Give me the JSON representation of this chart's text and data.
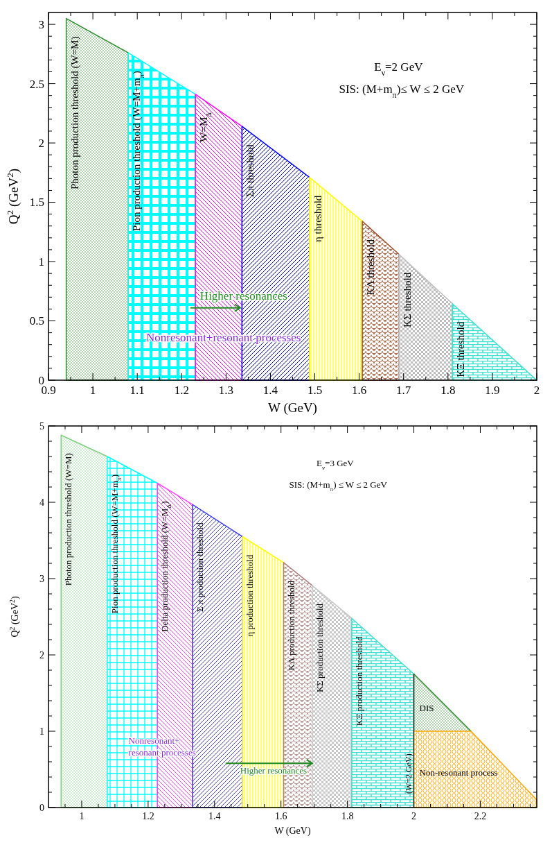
{
  "chart_data": [
    {
      "type": "area",
      "xlabel": "W (GeV)",
      "ylabel": "Q$^{2}$ (GeV$^{2}$)",
      "xlim": [
        0.9,
        2
      ],
      "ylim": [
        0,
        3.1
      ],
      "xticks": [
        0.9,
        {
          "value": 0.95,
          "label": null
        },
        1,
        {
          "value": 1.05,
          "label": null
        },
        1.1,
        {
          "value": 1.15,
          "label": null
        },
        1.2,
        {
          "value": 1.25,
          "label": null
        },
        1.3,
        {
          "value": 1.35,
          "label": null
        },
        1.4,
        {
          "value": 1.45,
          "label": null
        },
        1.5,
        {
          "value": 1.55,
          "label": null
        },
        1.6,
        {
          "value": 1.65,
          "label": null
        },
        1.7,
        {
          "value": 1.75,
          "label": null
        },
        1.8,
        {
          "value": 1.85,
          "label": null
        },
        1.9,
        {
          "value": 1.95,
          "label": null
        },
        2
      ],
      "yticks": [
        0,
        {
          "value": 0.1,
          "label": null
        },
        {
          "value": 0.2,
          "label": null
        },
        {
          "value": 0.3,
          "label": null
        },
        {
          "value": 0.4,
          "label": null
        },
        0.5,
        {
          "value": 0.6,
          "label": null
        },
        {
          "value": 0.7,
          "label": null
        },
        {
          "value": 0.8,
          "label": null
        },
        {
          "value": 0.9,
          "label": null
        },
        1,
        {
          "value": 1.1,
          "label": null
        },
        {
          "value": 1.2,
          "label": null
        },
        {
          "value": 1.3,
          "label": null
        },
        {
          "value": 1.4,
          "label": null
        },
        1.5,
        {
          "value": 1.6,
          "label": null
        },
        {
          "value": 1.7,
          "label": null
        },
        {
          "value": 1.8,
          "label": null
        },
        {
          "value": 1.9,
          "label": null
        },
        2,
        {
          "value": 2.1,
          "label": null
        },
        {
          "value": 2.2,
          "label": null
        },
        {
          "value": 2.3,
          "label": null
        },
        {
          "value": 2.4,
          "label": null
        },
        2.5,
        {
          "value": 2.6,
          "label": null
        },
        {
          "value": 2.7,
          "label": null
        },
        {
          "value": 2.8,
          "label": null
        },
        {
          "value": 2.9,
          "label": null
        },
        3
      ],
      "series": [
        {
          "name": "Photon production threshold (W=M)",
          "color": "#2e8b2e",
          "x": [
            0.94,
            1.08
          ],
          "values": [
            3.05,
            2.76
          ]
        },
        {
          "name": "Pion production threshold (W=M+m$_{π}$)",
          "color": "#00ffff",
          "x": [
            1.08,
            1.231
          ],
          "values": [
            2.76,
            2.41
          ]
        },
        {
          "name": "W=M$_{Δ}$",
          "color": "#ff00ff",
          "x": [
            1.231,
            1.336
          ],
          "values": [
            2.41,
            2.14
          ]
        },
        {
          "name": "Σπ threshold",
          "color": "#0000ff",
          "x": [
            1.336,
            1.488
          ],
          "values": [
            2.14,
            1.71
          ]
        },
        {
          "name": "η threshold",
          "color": "#ffff00",
          "x": [
            1.488,
            1.607
          ],
          "values": [
            1.71,
            1.34
          ]
        },
        {
          "name": "KΛ threshold",
          "color": "#a0522d",
          "x": [
            1.607,
            1.69
          ],
          "values": [
            1.34,
            1.06
          ]
        },
        {
          "name": "KΣ threshold",
          "color": "#bebebe",
          "x": [
            1.69,
            1.81
          ],
          "values": [
            1.06,
            0.645
          ]
        },
        {
          "name": "KΞ threshold",
          "color": "#40e0d0",
          "x": [
            1.81,
            2.0
          ],
          "values": [
            0.645,
            0
          ]
        }
      ],
      "annotations": [
        "E$_{ν}$=2 GeV",
        "SIS: (M+m$_{π}$)≤ W ≤ 2 GeV",
        {
          "text": "Higher resonances",
          "x": 1.332,
          "y": 0.61
        },
        "Nonresonant+resonant processes"
      ]
    },
    {
      "type": "area",
      "xlabel": "W (GeV)",
      "ylabel": "Q$^{2}$ (GeV$^{2}$)",
      "xlim": [
        0.9,
        2.37
      ],
      "ylim": [
        0,
        5
      ],
      "xticks": [
        {
          "value": 0.95,
          "label": null
        },
        1,
        {
          "value": 1.05,
          "label": null
        },
        {
          "value": 1.1,
          "label": null
        },
        {
          "value": 1.15,
          "label": null
        },
        1.2,
        {
          "value": 1.25,
          "label": null
        },
        {
          "value": 1.3,
          "label": null
        },
        {
          "value": 1.35,
          "label": null
        },
        1.4,
        {
          "value": 1.45,
          "label": null
        },
        {
          "value": 1.5,
          "label": null
        },
        {
          "value": 1.55,
          "label": null
        },
        1.6,
        {
          "value": 1.65,
          "label": null
        },
        {
          "value": 1.7,
          "label": null
        },
        {
          "value": 1.75,
          "label": null
        },
        1.8,
        {
          "value": 1.85,
          "label": null
        },
        {
          "value": 1.9,
          "label": null
        },
        {
          "value": 1.95,
          "label": null
        },
        2,
        {
          "value": 2.05,
          "label": null
        },
        {
          "value": 2.1,
          "label": null
        },
        {
          "value": 2.15,
          "label": null
        },
        2.2,
        {
          "value": 2.25,
          "label": null
        },
        {
          "value": 2.3,
          "label": null
        },
        {
          "value": 2.35,
          "label": null
        }
      ],
      "yticks": [
        0,
        {
          "value": 0.2,
          "label": null
        },
        {
          "value": 0.4,
          "label": null
        },
        {
          "value": 0.6,
          "label": null
        },
        {
          "value": 0.8,
          "label": null
        },
        1,
        {
          "value": 1.2,
          "label": null
        },
        {
          "value": 1.4,
          "label": null
        },
        {
          "value": 1.6,
          "label": null
        },
        {
          "value": 1.8,
          "label": null
        },
        2,
        {
          "value": 2.2,
          "label": null
        },
        {
          "value": 2.4,
          "label": null
        },
        {
          "value": 2.6,
          "label": null
        },
        {
          "value": 2.8,
          "label": null
        },
        3,
        {
          "value": 3.2,
          "label": null
        },
        {
          "value": 3.4,
          "label": null
        },
        {
          "value": 3.6,
          "label": null
        },
        {
          "value": 3.8,
          "label": null
        },
        4,
        {
          "value": 4.2,
          "label": null
        },
        {
          "value": 4.4,
          "label": null
        },
        {
          "value": 4.6,
          "label": null
        },
        {
          "value": 4.8,
          "label": null
        },
        5
      ],
      "series": [
        {
          "name": "Photon production threshold  (W=M)",
          "color": "#7fcf7f",
          "x": [
            0.938,
            1.077
          ],
          "values": [
            4.88,
            4.6
          ]
        },
        {
          "name": "Pion production threshold (W=M+m$_{π}$)",
          "color": "#00ffff",
          "x": [
            1.077,
            1.228
          ],
          "values": [
            4.6,
            4.25
          ]
        },
        {
          "name": "Delta production threshold (W=M$_{Δ}$)",
          "color": "#ff44ff",
          "x": [
            1.228,
            1.334
          ],
          "values": [
            4.25,
            3.97
          ]
        },
        {
          "name": "Σ π  production threshold",
          "color": "#4444ee",
          "x": [
            1.334,
            1.484
          ],
          "values": [
            3.97,
            3.55
          ]
        },
        {
          "name": "η  production threshold",
          "color": "#ffff00",
          "x": [
            1.484,
            1.608
          ],
          "values": [
            3.55,
            3.21
          ]
        },
        {
          "name": "KΛ  production threshold",
          "color": "#b08080",
          "x": [
            1.608,
            1.694
          ],
          "values": [
            3.21,
            2.91
          ]
        },
        {
          "name": "KΣ  production threshold",
          "color": "#c8c8c8",
          "x": [
            1.694,
            1.813
          ],
          "values": [
            2.91,
            2.48
          ]
        },
        {
          "name": "KΞ  production threshold",
          "color": "#40e0d0",
          "x": [
            1.813,
            2.0
          ],
          "values": [
            2.48,
            1.75
          ]
        },
        {
          "name": "DIS",
          "color": "#2e8b2e",
          "x": [
            2.0,
            2.172
          ],
          "values": [
            1.75,
            1.0
          ]
        },
        {
          "name": "Non-resonant process",
          "color": "#ffa500",
          "x": [
            2.0,
            2.172,
            2.37
          ],
          "values": [
            1.0,
            1.0,
            0.1
          ]
        }
      ],
      "ref_lines": [
        {
          "axis": "x",
          "value": 2,
          "label": "(W=2 GeV)"
        }
      ],
      "annotations": [
        "E$_{ν}$=3 GeV",
        "SIS: (M+m$_{π}$) ≤ W ≤ 2 GeV",
        {
          "text": "Higher resonances",
          "x": 1.694,
          "y": 0.58
        },
        "Nonresonant+",
        "resonant processes"
      ]
    }
  ]
}
